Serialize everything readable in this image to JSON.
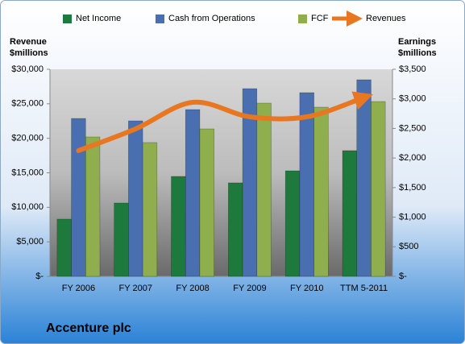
{
  "chart_data": {
    "type": "bar",
    "title": "Accenture plc",
    "ylabel": "Revenue $millions",
    "y2label": "Earnings $millions",
    "categories": [
      "FY 2006",
      "FY 2007",
      "FY 2008",
      "FY 2009",
      "FY 2010",
      "TTM 5-2011"
    ],
    "series": [
      {
        "name": "Net Income",
        "color": "#1e7a3c",
        "type": "bar",
        "axis": "y2",
        "values": [
          967,
          1239,
          1689,
          1580,
          1784,
          2125
        ]
      },
      {
        "name": "Cash from Operations",
        "color": "#4a6fb0",
        "type": "bar",
        "axis": "y2",
        "values": [
          2669,
          2628,
          2819,
          3173,
          3105,
          3323
        ]
      },
      {
        "name": "FCF",
        "color": "#8fae4d",
        "type": "bar",
        "axis": "y2",
        "values": [
          2356,
          2261,
          2492,
          2928,
          2860,
          2955
        ]
      },
      {
        "name": "Revenues",
        "color": "#e87722",
        "type": "line",
        "axis": "y",
        "values": [
          18210,
          21362,
          25214,
          23113,
          23113,
          25914
        ]
      }
    ],
    "ylim": [
      0,
      30000
    ],
    "yticks": [
      {
        "value": 0,
        "label": "$-"
      },
      {
        "value": 5000,
        "label": "$5,000"
      },
      {
        "value": 10000,
        "label": "$10,000"
      },
      {
        "value": 15000,
        "label": "$15,000"
      },
      {
        "value": 20000,
        "label": "$20,000"
      },
      {
        "value": 25000,
        "label": "$25,000"
      },
      {
        "value": 30000,
        "label": "$30,000"
      }
    ],
    "y2lim": [
      0,
      3500
    ],
    "y2ticks": [
      {
        "value": 0,
        "label": "$-"
      },
      {
        "value": 500,
        "label": "$500"
      },
      {
        "value": 1000,
        "label": "$1,000"
      },
      {
        "value": 1500,
        "label": "$1,500"
      },
      {
        "value": 2000,
        "label": "$2,000"
      },
      {
        "value": 2500,
        "label": "$2,500"
      },
      {
        "value": 3000,
        "label": "$3,000"
      },
      {
        "value": 3500,
        "label": "$3,500"
      }
    ],
    "legend": "top"
  }
}
